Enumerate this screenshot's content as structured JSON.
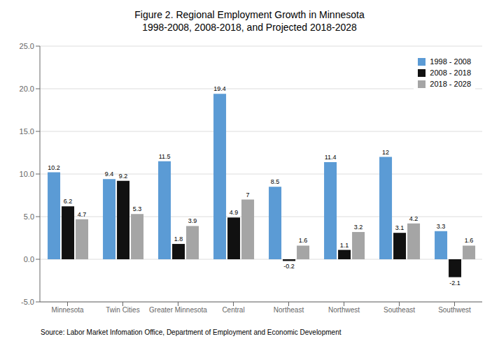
{
  "chart_data": {
    "type": "bar",
    "title": "Figure 2. Regional Employment Growth in Minnesota\n1998-2008, 2008-2018, and Projected 2018-2028",
    "categories": [
      "Minnesota",
      "Twin Cities",
      "Greater Minnesota",
      "Central",
      "Northeast",
      "Northwest",
      "Southeast",
      "Southwest"
    ],
    "series": [
      {
        "name": "1998 - 2008",
        "color": "#5B9BD5",
        "values": [
          10.2,
          9.4,
          11.5,
          19.4,
          8.5,
          11.4,
          12.0,
          3.3
        ]
      },
      {
        "name": "2008 - 2018",
        "color": "#111111",
        "values": [
          6.2,
          9.2,
          1.8,
          4.9,
          -0.2,
          1.1,
          3.1,
          -2.1
        ]
      },
      {
        "name": "2018 - 2028",
        "color": "#A5A5A5",
        "values": [
          4.7,
          5.3,
          3.9,
          7.0,
          1.6,
          3.2,
          4.2,
          1.6
        ]
      }
    ],
    "ylim": [
      -5.0,
      25.0
    ],
    "yticks": [
      {
        "value": -5.0,
        "label": "-5.0"
      },
      {
        "value": 0.0,
        "label": "0.0"
      },
      {
        "value": 5.0,
        "label": "5.0"
      },
      {
        "value": 10.0,
        "label": "10.0"
      },
      {
        "value": 15.0,
        "label": "15.0"
      },
      {
        "value": 20.0,
        "label": "20.0"
      },
      {
        "value": 25.0,
        "label": "25.0"
      }
    ],
    "grid": true,
    "legend": "upper right",
    "data_labels": true,
    "annotations": [
      "Source: Labor Market Infomation Office, Department of Employment and Economic Development"
    ]
  }
}
